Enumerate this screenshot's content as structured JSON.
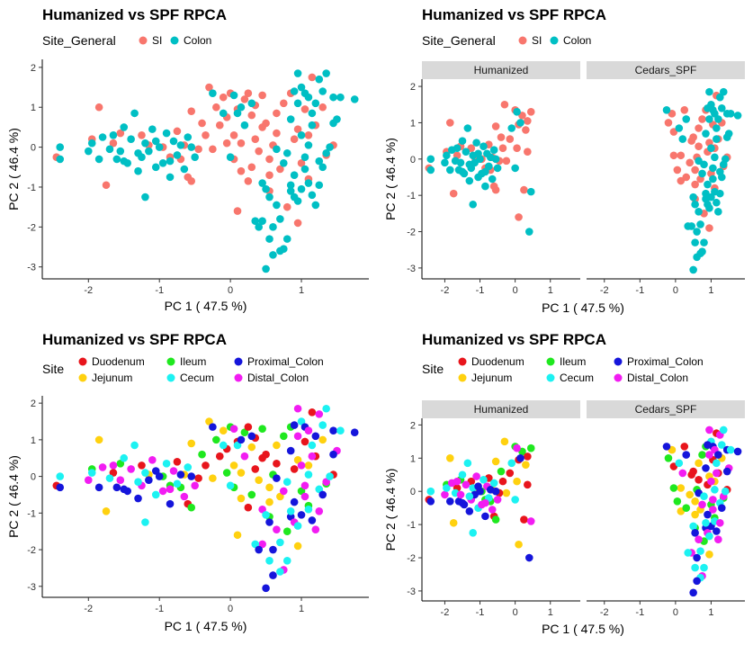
{
  "chart_data": [
    {
      "type": "scatter",
      "title": "Humanized vs SPF RPCA",
      "xlabel": "PC 1 ( 47.5 %)",
      "ylabel": "PC 2 ( 46.4 %)",
      "xlim": [
        -2.65,
        1.95
      ],
      "ylim": [
        -3.3,
        2.2
      ],
      "xticks": [
        -2,
        -1,
        0,
        1
      ],
      "yticks": [
        -3,
        -2,
        -1,
        0,
        1,
        2
      ],
      "legend": {
        "title": "Site_General",
        "position": "top",
        "entries": [
          "SI",
          "Colon"
        ]
      },
      "colors": {
        "SI": "#F8766D",
        "Colon": "#00BFC4"
      },
      "facets": [
        {
          "name": "",
          "groups": [
            "Humanized",
            "Cedars_SPF"
          ]
        }
      ],
      "series": [
        {
          "name": "SI",
          "points": [
            [
              -2.45,
              -0.25
            ],
            [
              -1.85,
              1.0
            ],
            [
              -1.95,
              0.2
            ],
            [
              -1.65,
              0.1
            ],
            [
              -1.75,
              -0.95
            ],
            [
              -1.55,
              0.35
            ],
            [
              -1.25,
              0.3
            ],
            [
              -1.15,
              0.05
            ],
            [
              -0.95,
              0.0
            ],
            [
              -0.75,
              0.4
            ],
            [
              -0.65,
              0.05
            ],
            [
              -0.7,
              -0.3
            ],
            [
              -0.6,
              -0.75
            ],
            [
              -0.55,
              0.9
            ],
            [
              -0.4,
              0.6
            ],
            [
              -0.35,
              0.3
            ],
            [
              -0.25,
              -0.05
            ],
            [
              -0.2,
              1.0
            ],
            [
              -0.15,
              0.55
            ],
            [
              -0.1,
              1.25
            ],
            [
              0.0,
              1.35
            ],
            [
              -0.05,
              0.75
            ],
            [
              0.05,
              0.3
            ],
            [
              0.05,
              -0.3
            ],
            [
              0.1,
              0.95
            ],
            [
              0.15,
              -0.6
            ],
            [
              0.2,
              1.2
            ],
            [
              0.25,
              1.35
            ],
            [
              0.3,
              0.8
            ],
            [
              0.3,
              -0.5
            ],
            [
              0.35,
              0.2
            ],
            [
              0.4,
              -0.1
            ],
            [
              0.45,
              1.3
            ],
            [
              0.5,
              0.6
            ],
            [
              0.55,
              -0.3
            ],
            [
              0.55,
              -1.1
            ],
            [
              0.65,
              0.35
            ],
            [
              0.7,
              -0.55
            ],
            [
              0.8,
              -1.5
            ],
            [
              0.9,
              0.2
            ],
            [
              0.95,
              0.45
            ],
            [
              1.0,
              -0.4
            ],
            [
              1.05,
              0.95
            ],
            [
              1.1,
              0.3
            ],
            [
              1.1,
              -0.8
            ],
            [
              1.2,
              0.55
            ],
            [
              1.3,
              1.0
            ],
            [
              1.35,
              -0.2
            ],
            [
              1.45,
              0.05
            ],
            [
              0.55,
              -0.7
            ],
            [
              0.85,
              1.35
            ],
            [
              -0.45,
              -0.05
            ],
            [
              -0.3,
              1.5
            ],
            [
              0.6,
              0.05
            ],
            [
              0.25,
              -0.85
            ],
            [
              0.15,
              0.1
            ],
            [
              0.75,
              1.1
            ],
            [
              1.15,
              1.75
            ],
            [
              0.95,
              -1.9
            ],
            [
              -0.55,
              -0.85
            ],
            [
              0.35,
              1.05
            ],
            [
              0.65,
              0.85
            ],
            [
              -0.85,
              -0.25
            ],
            [
              0.45,
              0.5
            ],
            [
              0.1,
              -1.6
            ],
            [
              -0.05,
              0.1
            ]
          ]
        },
        {
          "name": "Colon",
          "points": [
            [
              -2.4,
              0.0
            ],
            [
              -2.4,
              -0.3
            ],
            [
              -2.0,
              -0.1
            ],
            [
              -1.95,
              0.1
            ],
            [
              -1.85,
              -0.3
            ],
            [
              -1.8,
              0.25
            ],
            [
              -1.7,
              -0.05
            ],
            [
              -1.6,
              -0.3
            ],
            [
              -1.55,
              -0.1
            ],
            [
              -1.5,
              0.5
            ],
            [
              -1.45,
              -0.4
            ],
            [
              -1.4,
              0.2
            ],
            [
              -1.35,
              0.85
            ],
            [
              -1.3,
              -0.6
            ],
            [
              -1.25,
              -0.25
            ],
            [
              -1.2,
              0.1
            ],
            [
              -1.15,
              -0.1
            ],
            [
              -1.1,
              0.45
            ],
            [
              -1.05,
              -0.5
            ],
            [
              -1.0,
              0.0
            ],
            [
              -0.95,
              -0.4
            ],
            [
              -0.9,
              0.35
            ],
            [
              -0.85,
              -0.75
            ],
            [
              -0.8,
              0.15
            ],
            [
              -0.75,
              -0.2
            ],
            [
              -0.7,
              0.05
            ],
            [
              -0.65,
              -0.55
            ],
            [
              -0.6,
              0.25
            ],
            [
              -0.55,
              0.0
            ],
            [
              -0.5,
              -0.25
            ],
            [
              -1.2,
              -1.25
            ],
            [
              -1.5,
              -0.35
            ],
            [
              -1.65,
              0.3
            ],
            [
              -1.3,
              -0.15
            ],
            [
              -1.05,
              0.15
            ],
            [
              -0.85,
              -0.35
            ],
            [
              0.0,
              -0.25
            ],
            [
              -0.25,
              1.35
            ],
            [
              0.05,
              1.3
            ],
            [
              0.1,
              0.85
            ],
            [
              0.15,
              1.0
            ],
            [
              0.2,
              0.55
            ],
            [
              -0.1,
              0.85
            ],
            [
              0.3,
              1.1
            ],
            [
              0.45,
              -0.9
            ],
            [
              0.5,
              -1.05
            ],
            [
              0.55,
              -1.25
            ],
            [
              0.45,
              -1.85
            ],
            [
              0.55,
              -2.3
            ],
            [
              0.6,
              -2.0
            ],
            [
              0.65,
              -1.45
            ],
            [
              0.7,
              -1.8
            ],
            [
              0.5,
              -3.05
            ],
            [
              0.75,
              -2.55
            ],
            [
              0.8,
              -2.3
            ],
            [
              0.85,
              -1.1
            ],
            [
              0.9,
              -1.25
            ],
            [
              0.95,
              -1.35
            ],
            [
              1.0,
              -1.05
            ],
            [
              1.05,
              -0.55
            ],
            [
              1.1,
              -0.9
            ],
            [
              1.15,
              -1.2
            ],
            [
              1.2,
              -1.45
            ],
            [
              1.25,
              -0.35
            ],
            [
              1.3,
              -0.5
            ],
            [
              1.35,
              -0.15
            ],
            [
              1.4,
              0.0
            ],
            [
              0.85,
              0.7
            ],
            [
              0.95,
              1.1
            ],
            [
              1.0,
              1.5
            ],
            [
              1.05,
              1.35
            ],
            [
              1.1,
              1.25
            ],
            [
              1.15,
              0.85
            ],
            [
              1.2,
              1.1
            ],
            [
              1.25,
              1.7
            ],
            [
              1.3,
              1.4
            ],
            [
              1.45,
              1.25
            ],
            [
              1.5,
              0.7
            ],
            [
              1.55,
              1.25
            ],
            [
              1.75,
              1.2
            ],
            [
              1.0,
              0.3
            ],
            [
              1.1,
              0.05
            ],
            [
              0.65,
              -0.05
            ],
            [
              0.75,
              -0.4
            ],
            [
              0.8,
              -0.15
            ],
            [
              0.9,
              -0.7
            ],
            [
              0.95,
              1.85
            ],
            [
              1.35,
              1.85
            ],
            [
              0.9,
              1.4
            ],
            [
              1.15,
              0.55
            ],
            [
              0.7,
              -2.6
            ],
            [
              0.6,
              -2.7
            ],
            [
              1.05,
              -0.25
            ],
            [
              0.35,
              -1.85
            ],
            [
              0.4,
              -2.0
            ],
            [
              1.25,
              -0.95
            ],
            [
              0.85,
              -0.95
            ],
            [
              1.45,
              0.6
            ]
          ]
        }
      ]
    },
    {
      "type": "scatter",
      "title": "Humanized vs SPF RPCA",
      "xlabel": "PC 1 ( 47.5 %)",
      "ylabel": "PC 2 ( 46.4 %)",
      "ylim": [
        -3.3,
        2.2
      ],
      "legend": {
        "title": "Site_General",
        "position": "top",
        "entries": [
          "SI",
          "Colon"
        ]
      },
      "facets": [
        {
          "name": "Humanized",
          "xlim": [
            -2.65,
            1.85
          ],
          "xticks": [
            -2,
            -1,
            0,
            1
          ]
        },
        {
          "name": "Cedars_SPF",
          "xlim": [
            -2.5,
            1.95
          ],
          "xticks": [
            -2,
            -1,
            0,
            1
          ]
        }
      ],
      "colors": {
        "SI": "#F8766D",
        "Colon": "#00BFC4"
      }
    },
    {
      "type": "scatter",
      "title": "Humanized vs SPF RPCA",
      "xlabel": "PC 1 ( 47.5 %)",
      "ylabel": "PC 2 ( 46.4 %)",
      "xlim": [
        -2.65,
        1.95
      ],
      "ylim": [
        -3.3,
        2.2
      ],
      "xticks": [
        -2,
        -1,
        0,
        1
      ],
      "yticks": [
        -3,
        -2,
        -1,
        0,
        1,
        2
      ],
      "legend": {
        "title": "Site",
        "position": "top",
        "entries": [
          "Duodenum",
          "Jejunum",
          "Ileum",
          "Cecum",
          "Proximal_Colon",
          "Distal_Colon"
        ]
      },
      "colors": {
        "Duodenum": "#E8151C",
        "Jejunum": "#FFD10F",
        "Ileum": "#1FE81F",
        "Cecum": "#1CF2F2",
        "Proximal_Colon": "#1515DB",
        "Distal_Colon": "#F21CF2"
      }
    },
    {
      "type": "scatter",
      "title": "Humanized vs SPF RPCA",
      "xlabel": "PC 1 ( 47.5 %)",
      "ylabel": "PC 2 ( 46.4 %)",
      "ylim": [
        -3.3,
        2.2
      ],
      "legend": {
        "title": "Site",
        "position": "top",
        "entries": [
          "Duodenum",
          "Jejunum",
          "Ileum",
          "Cecum",
          "Proximal_Colon",
          "Distal_Colon"
        ]
      },
      "facets": [
        {
          "name": "Humanized",
          "xlim": [
            -2.65,
            1.85
          ],
          "xticks": [
            -2,
            -1,
            0,
            1
          ]
        },
        {
          "name": "Cedars_SPF",
          "xlim": [
            -2.5,
            1.95
          ],
          "xticks": [
            -2,
            -1,
            0,
            1
          ]
        }
      ]
    }
  ]
}
